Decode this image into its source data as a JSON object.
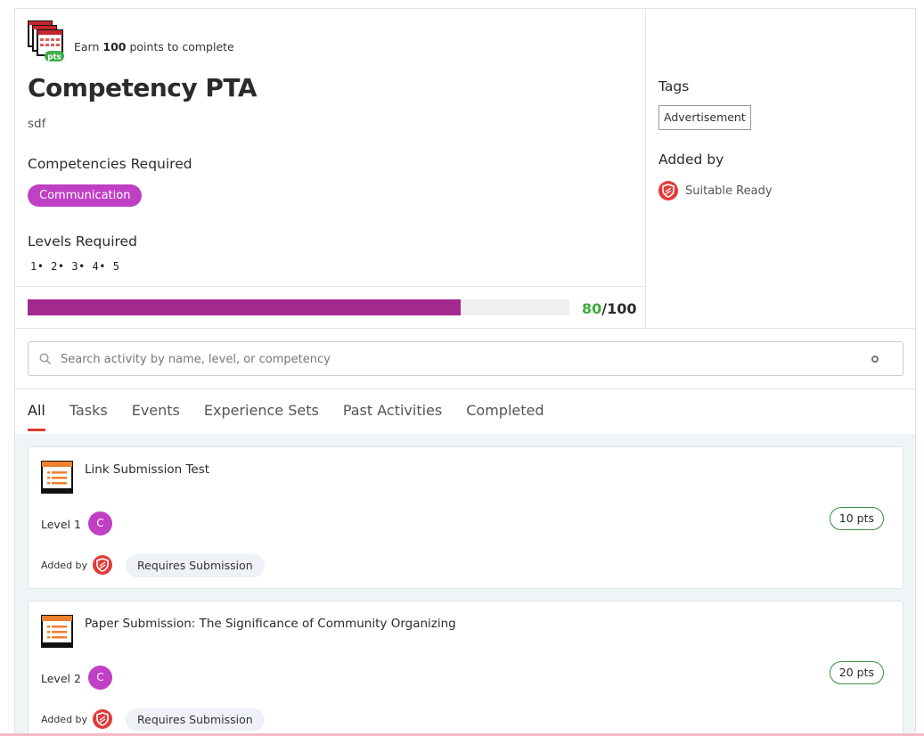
{
  "header": {
    "earn_prefix": "Earn",
    "earn_points": "100",
    "earn_suffix": "points to complete",
    "title": "Competency PTA",
    "description": "sdf",
    "competencies_label": "Competencies Required",
    "competencies": [
      "Communication"
    ],
    "levels_label": "Levels Required",
    "levels_text": "1• 2• 3• 4• 5",
    "progress_current": "80",
    "progress_sep_total": "/100",
    "progress_fraction": 0.8
  },
  "sidebar": {
    "tags_label": "Tags",
    "tags": [
      "Advertisement"
    ],
    "added_by_label": "Added by",
    "author_name": "Suitable Ready"
  },
  "search": {
    "placeholder": "Search activity by name, level, or competency"
  },
  "tabs": [
    {
      "label": "All",
      "active": true
    },
    {
      "label": "Tasks"
    },
    {
      "label": "Events"
    },
    {
      "label": "Experience Sets"
    },
    {
      "label": "Past Activities"
    },
    {
      "label": "Completed"
    }
  ],
  "activities": [
    {
      "title": "Link Submission Test",
      "level": "Level 1",
      "competency_initial": "C",
      "points": "10 pts",
      "added_by_label": "Added by",
      "requirement": "Requires Submission"
    },
    {
      "title": "Paper Submission: The Significance of Community Organizing",
      "level": "Level 2",
      "competency_initial": "C",
      "points": "20 pts",
      "added_by_label": "Added by",
      "requirement": "Requires Submission"
    }
  ],
  "colors": {
    "competency": "#c03fc5",
    "progress_fill": "#a3298f",
    "progress_current": "#3faa3f",
    "tab_underline": "#e13d2f",
    "author_badge": "#e23b3b"
  }
}
